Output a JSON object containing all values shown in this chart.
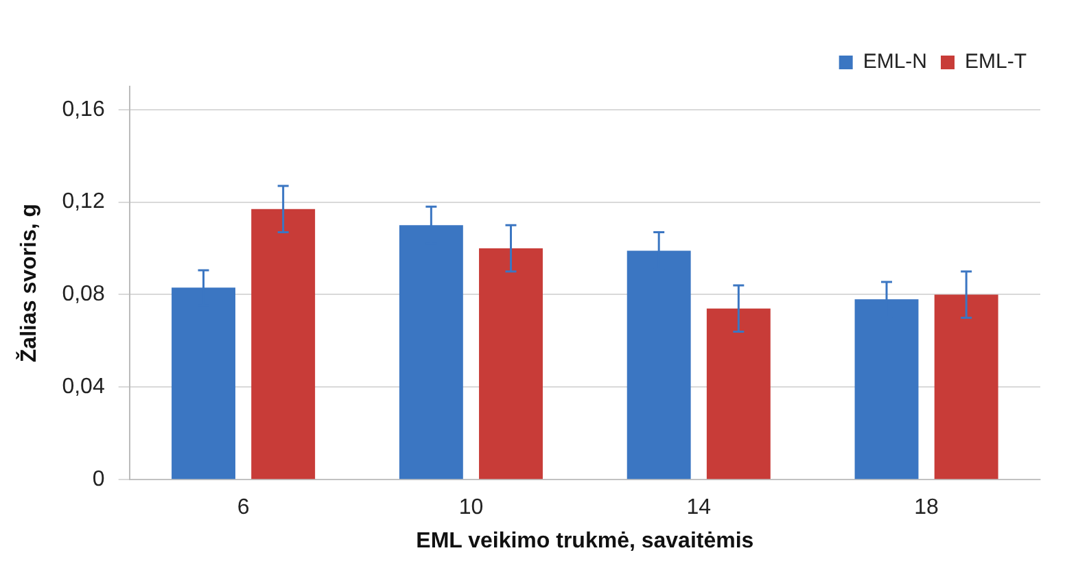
{
  "chart_data": {
    "type": "bar",
    "xlabel": "EML veikimo trukmė, savaitėmis",
    "ylabel": "Žalias svoris, g",
    "categories": [
      "6",
      "10",
      "14",
      "18"
    ],
    "series": [
      {
        "name": "EML-N",
        "color": "#3b76c2",
        "values": [
          0.083,
          0.11,
          0.099,
          0.078
        ],
        "errors": [
          0.0075,
          0.008,
          0.008,
          0.0075
        ]
      },
      {
        "name": "EML-T",
        "color": "#c83c38",
        "values": [
          0.117,
          0.1,
          0.074,
          0.08
        ],
        "errors": [
          0.01,
          0.01,
          0.01,
          0.01
        ]
      }
    ],
    "ylim": [
      0,
      0.17
    ],
    "yticks": [
      {
        "value": 0,
        "label": "0"
      },
      {
        "value": 0.04,
        "label": "0,04"
      },
      {
        "value": 0.08,
        "label": "0,08"
      },
      {
        "value": 0.12,
        "label": "0,12"
      },
      {
        "value": 0.16,
        "label": "0,16"
      }
    ],
    "grid": "y",
    "legend": "top right"
  }
}
